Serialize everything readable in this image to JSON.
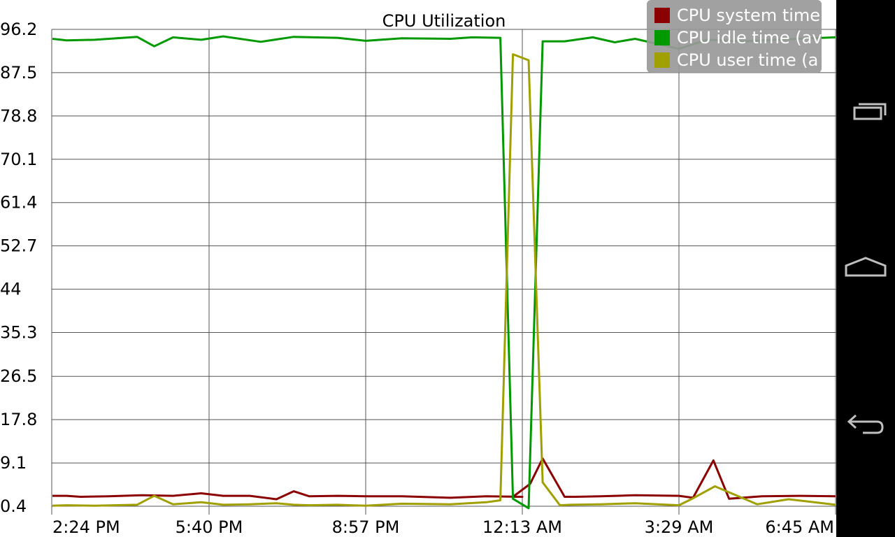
{
  "chart_data": {
    "type": "line",
    "title": "CPU Utilization",
    "xlabel": "",
    "ylabel": "",
    "y_ticks": [
      "96.2",
      "87.5",
      "78.8",
      "70.1",
      "61.4",
      "52.7",
      "44",
      "35.3",
      "26.5",
      "17.8",
      "9.1",
      "0.4"
    ],
    "ylim": [
      0.4,
      96.2
    ],
    "x_ticks": [
      "2:24 PM",
      "5:40 PM",
      "8:57 PM",
      "12:13 AM",
      "3:29 AM",
      "6:45 AM"
    ],
    "x_tick_positions": [
      0,
      1,
      2,
      3,
      4,
      5
    ],
    "xlim": [
      0,
      5
    ],
    "grid": true,
    "legend_position": "top-right",
    "series": [
      {
        "name": "CPU system time",
        "legend_label": "CPU system time",
        "color": "#8b0000",
        "x": [
          0,
          0.09,
          0.18,
          0.36,
          0.57,
          0.77,
          0.95,
          1.09,
          1.26,
          1.43,
          1.54,
          1.64,
          1.82,
          2.0,
          2.23,
          2.54,
          2.77,
          3.0,
          2.94,
          3.05,
          3.13,
          3.27,
          3.34,
          3.5,
          3.72,
          4.0,
          4.09,
          4.22,
          4.32,
          4.53,
          4.77,
          5.0
        ],
        "values": [
          2.5,
          2.5,
          2.3,
          2.4,
          2.6,
          2.5,
          3.0,
          2.5,
          2.5,
          1.8,
          3.4,
          2.4,
          2.5,
          2.4,
          2.4,
          2.1,
          2.4,
          2.3,
          2.3,
          4.9,
          10.0,
          2.3,
          2.3,
          2.4,
          2.6,
          2.5,
          2.1,
          9.6,
          1.9,
          2.4,
          2.5,
          2.4
        ]
      },
      {
        "name": "CPU idle time",
        "legend_label": "CPU idle time (av",
        "color": "#009900",
        "x": [
          0,
          0.09,
          0.27,
          0.54,
          0.65,
          0.77,
          0.95,
          1.09,
          1.33,
          1.54,
          1.82,
          2.0,
          2.23,
          2.54,
          2.68,
          2.86,
          2.94,
          3.04,
          3.13,
          3.27,
          3.45,
          3.59,
          3.72,
          4.0,
          4.18,
          4.41,
          4.68,
          5.0
        ],
        "values": [
          94.3,
          94.0,
          94.1,
          94.7,
          92.8,
          94.6,
          94.1,
          94.8,
          93.7,
          94.7,
          94.5,
          93.9,
          94.4,
          94.3,
          94.6,
          94.5,
          1.9,
          0.0,
          93.8,
          93.8,
          94.6,
          93.6,
          94.3,
          92.3,
          94.1,
          93.8,
          94.2,
          94.6
        ]
      },
      {
        "name": "CPU user time",
        "legend_label": "CPU user time (a",
        "color": "#a0a000",
        "x": [
          0,
          0.09,
          0.27,
          0.54,
          0.65,
          0.77,
          0.95,
          1.09,
          1.26,
          1.43,
          1.54,
          1.64,
          1.82,
          2.0,
          2.23,
          2.54,
          2.77,
          2.86,
          2.94,
          3.04,
          3.13,
          3.24,
          3.31,
          3.5,
          3.72,
          4.0,
          4.09,
          4.23,
          4.5,
          4.7,
          5.0
        ],
        "values": [
          0.5,
          0.6,
          0.5,
          0.7,
          2.5,
          0.8,
          1.2,
          0.7,
          0.8,
          1.0,
          0.7,
          0.6,
          0.7,
          0.5,
          0.9,
          0.8,
          1.2,
          1.6,
          91.2,
          90.0,
          5.2,
          0.6,
          0.7,
          0.8,
          1.0,
          0.6,
          2.0,
          4.4,
          0.8,
          1.8,
          0.7
        ]
      }
    ]
  },
  "nav": {
    "recent_label": "Recent apps",
    "home_label": "Home",
    "back_label": "Back"
  }
}
